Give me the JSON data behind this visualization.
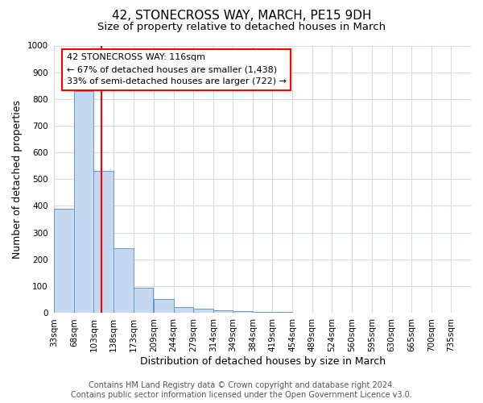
{
  "title": "42, STONECROSS WAY, MARCH, PE15 9DH",
  "subtitle": "Size of property relative to detached houses in March",
  "xlabel": "Distribution of detached houses by size in March",
  "ylabel": "Number of detached properties",
  "bin_edges": [
    33,
    68,
    103,
    138,
    173,
    209,
    244,
    279,
    314,
    349,
    384,
    419,
    454,
    489,
    524,
    560,
    595,
    630,
    665,
    700,
    735
  ],
  "bar_heights": [
    390,
    830,
    530,
    240,
    95,
    50,
    20,
    15,
    10,
    5,
    3,
    2,
    1,
    0,
    0,
    0,
    0,
    0,
    0,
    0
  ],
  "bar_color": "#c5d8f0",
  "bar_edge_color": "#6699cc",
  "vline_x": 116,
  "vline_color": "red",
  "annotation_text": "42 STONECROSS WAY: 116sqm\n← 67% of detached houses are smaller (1,438)\n33% of semi-detached houses are larger (722) →",
  "annotation_box_color": "red",
  "ylim": [
    0,
    1000
  ],
  "yticks": [
    0,
    100,
    200,
    300,
    400,
    500,
    600,
    700,
    800,
    900,
    1000
  ],
  "footer_line1": "Contains HM Land Registry data © Crown copyright and database right 2024.",
  "footer_line2": "Contains public sector information licensed under the Open Government Licence v3.0.",
  "bg_color": "#ffffff",
  "grid_color": "#d0dce8",
  "title_fontsize": 11,
  "subtitle_fontsize": 9.5,
  "axis_label_fontsize": 9,
  "tick_fontsize": 7.5,
  "annotation_fontsize": 8,
  "footer_fontsize": 7
}
